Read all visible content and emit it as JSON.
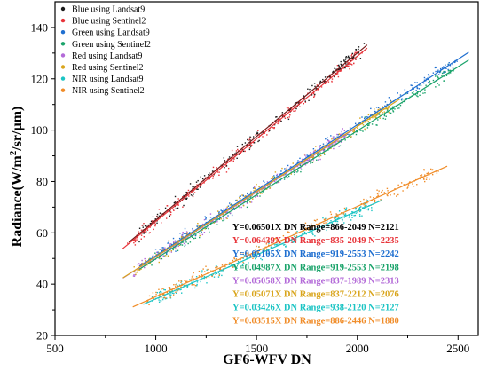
{
  "chart_data": {
    "type": "scatter",
    "xlabel": "GF6-WFV DN",
    "ylabel_parts": {
      "pre": "Radiance(W/m",
      "sup": "2",
      "post": "/sr/µm)"
    },
    "xlim": [
      500,
      2600
    ],
    "ylim": [
      20,
      150
    ],
    "x_ticks": [
      500,
      1000,
      1500,
      2000,
      2500
    ],
    "y_ticks": [
      20,
      40,
      60,
      80,
      100,
      120,
      140
    ],
    "legend_position": "top-left",
    "series": [
      {
        "name": "Blue using Landsat9",
        "color": "#1a1a1a",
        "line_color": "#7a1a1a",
        "slope": 0.06501,
        "range": [
          866,
          2049
        ],
        "n": 2121,
        "equation": "Y=0.06501X DN Range=866-2049 N=2121"
      },
      {
        "name": "Blue using Sentinel2",
        "color": "#e8343a",
        "line_color": "#e8343a",
        "slope": 0.06439,
        "range": [
          835,
          2049
        ],
        "n": 2235,
        "equation": "Y=0.06439X DN Range=835-2049 N=2235"
      },
      {
        "name": "Green using Landsat9",
        "color": "#1f6fd0",
        "line_color": "#1f6fd0",
        "slope": 0.05105,
        "range": [
          919,
          2553
        ],
        "n": 2242,
        "equation": "Y=0.05105X DN Range=919-2553 N=2242"
      },
      {
        "name": "Green using Sentinel2",
        "color": "#1aa36a",
        "line_color": "#1aa36a",
        "slope": 0.04987,
        "range": [
          919,
          2553
        ],
        "n": 2198,
        "equation": "Y=0.04987X DN Range=919-2553 N=2198"
      },
      {
        "name": "Red using Landsat9",
        "color": "#b36ad8",
        "line_color": "#b36ad8",
        "slope": 0.05058,
        "range": [
          837,
          1989
        ],
        "n": 2313,
        "equation": "Y=0.05058X DN Range=837-1989 N=2313"
      },
      {
        "name": "Red using Sentinel2",
        "color": "#d9a51c",
        "line_color": "#d9a51c",
        "slope": 0.05071,
        "range": [
          837,
          2212
        ],
        "n": 2076,
        "equation": "Y=0.05071X DN Range=837-2212 N=2076"
      },
      {
        "name": "NIR using Landsat9",
        "color": "#1cc4c4",
        "line_color": "#1cc4c4",
        "slope": 0.03426,
        "range": [
          938,
          2120
        ],
        "n": 2127,
        "equation": "Y=0.03426X DN Range=938-2120 N=2127"
      },
      {
        "name": "NIR using Sentinel2",
        "color": "#f08c28",
        "line_color": "#f08c28",
        "slope": 0.03515,
        "range": [
          886,
          2446
        ],
        "n": 1880,
        "equation": "Y=0.03515X DN Range=886-2446 N=1880"
      }
    ]
  }
}
